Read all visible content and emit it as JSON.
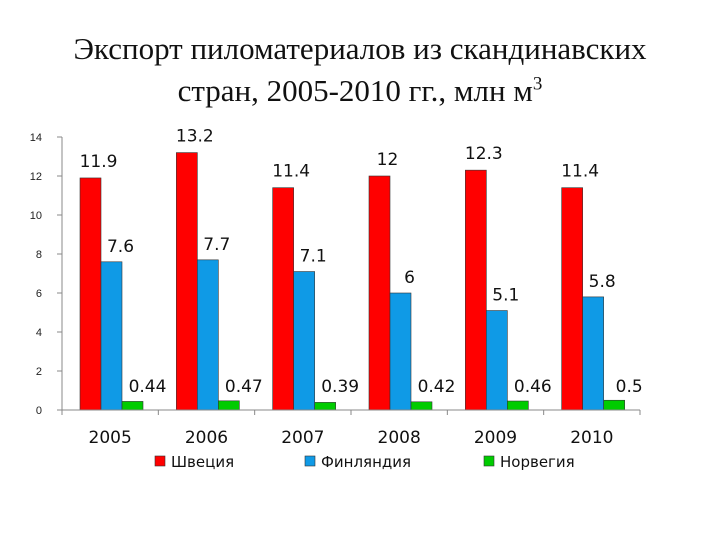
{
  "chart_data": {
    "type": "bar",
    "title_line1": "Экспорт пиломатериалов из скандинавских",
    "title_line2": "стран, 2005-2010 гг., млн м",
    "title_superscript": "3",
    "categories": [
      "2005",
      "2006",
      "2007",
      "2008",
      "2009",
      "2010"
    ],
    "series": [
      {
        "name": "Швеция",
        "color": "#ff0000",
        "values": [
          11.9,
          13.2,
          11.4,
          12,
          12.3,
          11.4
        ],
        "labels": [
          "11.9",
          "13.2",
          "11.4",
          "12",
          "12.3",
          "11.4"
        ]
      },
      {
        "name": "Финляндия",
        "color": "#0f9ae6",
        "values": [
          7.6,
          7.7,
          7.1,
          6,
          5.1,
          5.8
        ],
        "labels": [
          "7.6",
          "7.7",
          "7.1",
          "6",
          "5.1",
          "5.8"
        ]
      },
      {
        "name": "Норвегия",
        "color": "#00cc00",
        "values": [
          0.44,
          0.47,
          0.39,
          0.42,
          0.46,
          0.5
        ],
        "labels": [
          "0.44",
          "0.47",
          "0.39",
          "0.42",
          "0.46",
          "0.5"
        ]
      }
    ],
    "ylim": [
      0,
      14
    ],
    "yticks": [
      "0",
      "2",
      "4",
      "6",
      "8",
      "10",
      "12",
      "14"
    ],
    "grid": false,
    "legend_position": "bottom"
  }
}
